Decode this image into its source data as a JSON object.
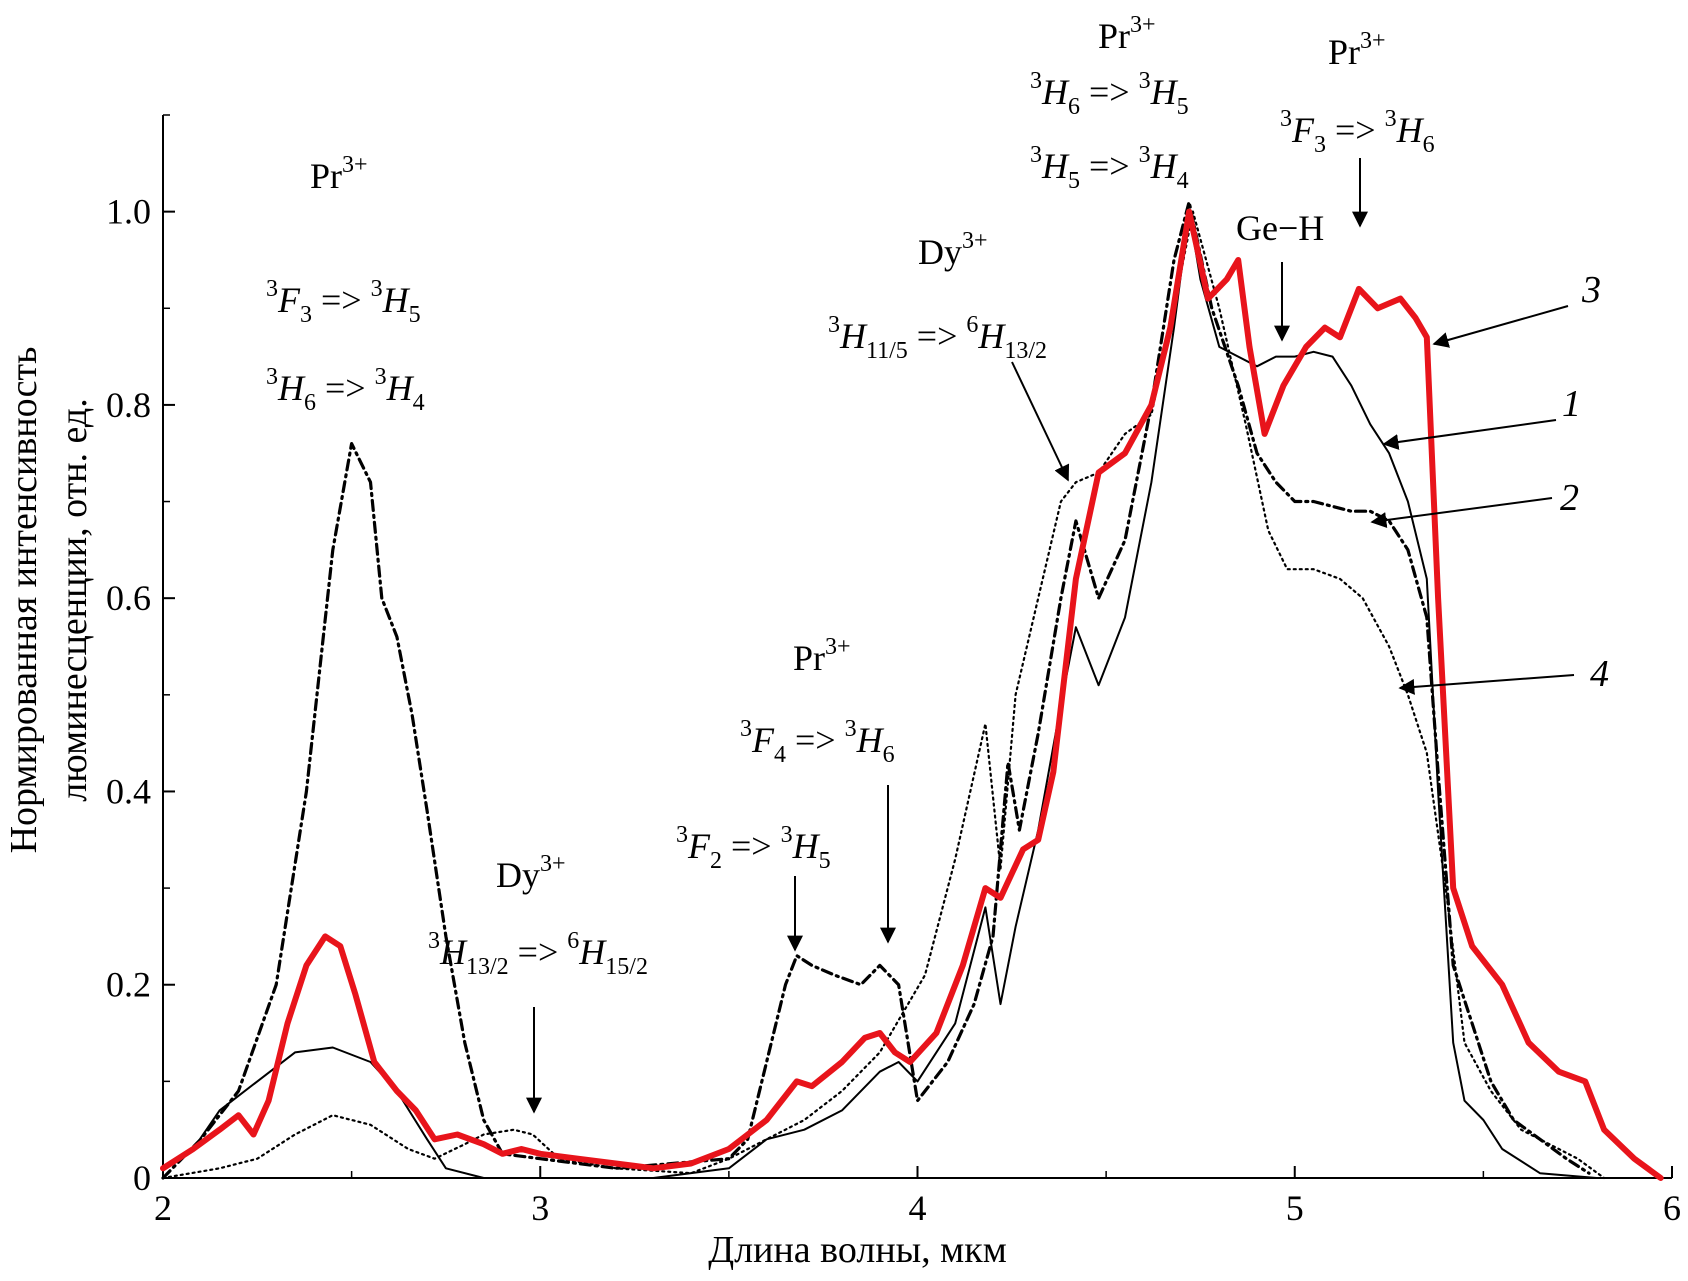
{
  "chart_data": {
    "type": "line",
    "xlabel": "Длина волны, мкм",
    "ylabel": "Нормированная интенсивность люминесценции, отн. ед.",
    "ylabel_lines": [
      "Нормированная интенсивность",
      "люминесценции, отн. ед."
    ],
    "xlim": [
      2,
      6
    ],
    "ylim": [
      0,
      1.1
    ],
    "xticks": [
      2,
      3,
      4,
      5,
      6
    ],
    "yticks": [
      0,
      0.2,
      0.4,
      0.6,
      0.8,
      1.0
    ],
    "ytick_labels": [
      "0",
      "0.2",
      "0.4",
      "0.6",
      "0.8",
      "1.0"
    ],
    "grid": false,
    "series": [
      {
        "name": "1",
        "style": "solid-thin",
        "color": "#000000",
        "points": [
          [
            2.0,
            0.01
          ],
          [
            2.08,
            0.03
          ],
          [
            2.15,
            0.07
          ],
          [
            2.25,
            0.1
          ],
          [
            2.35,
            0.13
          ],
          [
            2.45,
            0.135
          ],
          [
            2.55,
            0.12
          ],
          [
            2.62,
            0.09
          ],
          [
            2.7,
            0.04
          ],
          [
            2.75,
            0.01
          ],
          [
            2.85,
            0.0
          ],
          [
            3.0,
            0.0
          ],
          [
            3.3,
            0.0
          ],
          [
            3.5,
            0.01
          ],
          [
            3.6,
            0.04
          ],
          [
            3.7,
            0.05
          ],
          [
            3.8,
            0.07
          ],
          [
            3.9,
            0.11
          ],
          [
            3.95,
            0.12
          ],
          [
            4.0,
            0.1
          ],
          [
            4.1,
            0.16
          ],
          [
            4.18,
            0.28
          ],
          [
            4.22,
            0.18
          ],
          [
            4.26,
            0.26
          ],
          [
            4.32,
            0.36
          ],
          [
            4.38,
            0.49
          ],
          [
            4.42,
            0.57
          ],
          [
            4.48,
            0.51
          ],
          [
            4.55,
            0.58
          ],
          [
            4.62,
            0.72
          ],
          [
            4.68,
            0.88
          ],
          [
            4.72,
            1.0
          ],
          [
            4.75,
            0.93
          ],
          [
            4.8,
            0.86
          ],
          [
            4.85,
            0.85
          ],
          [
            4.9,
            0.84
          ],
          [
            4.95,
            0.85
          ],
          [
            5.0,
            0.85
          ],
          [
            5.05,
            0.855
          ],
          [
            5.1,
            0.85
          ],
          [
            5.15,
            0.82
          ],
          [
            5.2,
            0.78
          ],
          [
            5.25,
            0.75
          ],
          [
            5.3,
            0.7
          ],
          [
            5.35,
            0.62
          ],
          [
            5.38,
            0.4
          ],
          [
            5.42,
            0.14
          ],
          [
            5.45,
            0.08
          ],
          [
            5.5,
            0.06
          ],
          [
            5.55,
            0.03
          ],
          [
            5.65,
            0.005
          ],
          [
            5.8,
            0.0
          ]
        ]
      },
      {
        "name": "2",
        "style": "dash-dot",
        "color": "#000000",
        "points": [
          [
            2.0,
            0.0
          ],
          [
            2.1,
            0.04
          ],
          [
            2.2,
            0.09
          ],
          [
            2.3,
            0.2
          ],
          [
            2.38,
            0.4
          ],
          [
            2.45,
            0.65
          ],
          [
            2.5,
            0.76
          ],
          [
            2.55,
            0.72
          ],
          [
            2.58,
            0.6
          ],
          [
            2.62,
            0.56
          ],
          [
            2.66,
            0.48
          ],
          [
            2.7,
            0.38
          ],
          [
            2.75,
            0.25
          ],
          [
            2.8,
            0.14
          ],
          [
            2.85,
            0.06
          ],
          [
            2.9,
            0.025
          ],
          [
            3.0,
            0.02
          ],
          [
            3.2,
            0.01
          ],
          [
            3.5,
            0.02
          ],
          [
            3.55,
            0.04
          ],
          [
            3.6,
            0.12
          ],
          [
            3.65,
            0.2
          ],
          [
            3.68,
            0.23
          ],
          [
            3.72,
            0.22
          ],
          [
            3.78,
            0.21
          ],
          [
            3.85,
            0.2
          ],
          [
            3.9,
            0.22
          ],
          [
            3.95,
            0.2
          ],
          [
            4.0,
            0.08
          ],
          [
            4.08,
            0.12
          ],
          [
            4.15,
            0.18
          ],
          [
            4.2,
            0.25
          ],
          [
            4.24,
            0.43
          ],
          [
            4.27,
            0.36
          ],
          [
            4.32,
            0.46
          ],
          [
            4.38,
            0.6
          ],
          [
            4.42,
            0.68
          ],
          [
            4.48,
            0.6
          ],
          [
            4.55,
            0.66
          ],
          [
            4.62,
            0.8
          ],
          [
            4.68,
            0.95
          ],
          [
            4.72,
            1.01
          ],
          [
            4.78,
            0.9
          ],
          [
            4.85,
            0.82
          ],
          [
            4.9,
            0.75
          ],
          [
            4.95,
            0.72
          ],
          [
            5.0,
            0.7
          ],
          [
            5.05,
            0.7
          ],
          [
            5.1,
            0.695
          ],
          [
            5.15,
            0.69
          ],
          [
            5.2,
            0.69
          ],
          [
            5.25,
            0.68
          ],
          [
            5.3,
            0.65
          ],
          [
            5.35,
            0.58
          ],
          [
            5.38,
            0.42
          ],
          [
            5.42,
            0.22
          ],
          [
            5.47,
            0.16
          ],
          [
            5.52,
            0.1
          ],
          [
            5.58,
            0.06
          ],
          [
            5.65,
            0.04
          ],
          [
            5.72,
            0.02
          ],
          [
            5.78,
            0.005
          ]
        ]
      },
      {
        "name": "3",
        "style": "solid-thick",
        "color": "#e8141b",
        "points": [
          [
            2.0,
            0.01
          ],
          [
            2.08,
            0.03
          ],
          [
            2.15,
            0.05
          ],
          [
            2.2,
            0.065
          ],
          [
            2.24,
            0.045
          ],
          [
            2.28,
            0.08
          ],
          [
            2.33,
            0.16
          ],
          [
            2.38,
            0.22
          ],
          [
            2.43,
            0.25
          ],
          [
            2.47,
            0.24
          ],
          [
            2.51,
            0.19
          ],
          [
            2.56,
            0.12
          ],
          [
            2.62,
            0.09
          ],
          [
            2.67,
            0.07
          ],
          [
            2.72,
            0.04
          ],
          [
            2.78,
            0.045
          ],
          [
            2.85,
            0.035
          ],
          [
            2.9,
            0.025
          ],
          [
            2.95,
            0.03
          ],
          [
            3.0,
            0.025
          ],
          [
            3.1,
            0.02
          ],
          [
            3.2,
            0.015
          ],
          [
            3.3,
            0.01
          ],
          [
            3.4,
            0.015
          ],
          [
            3.5,
            0.03
          ],
          [
            3.6,
            0.06
          ],
          [
            3.68,
            0.1
          ],
          [
            3.72,
            0.095
          ],
          [
            3.8,
            0.12
          ],
          [
            3.86,
            0.145
          ],
          [
            3.9,
            0.15
          ],
          [
            3.94,
            0.13
          ],
          [
            3.98,
            0.12
          ],
          [
            4.05,
            0.15
          ],
          [
            4.12,
            0.22
          ],
          [
            4.18,
            0.3
          ],
          [
            4.22,
            0.29
          ],
          [
            4.28,
            0.34
          ],
          [
            4.32,
            0.35
          ],
          [
            4.36,
            0.42
          ],
          [
            4.42,
            0.62
          ],
          [
            4.48,
            0.73
          ],
          [
            4.55,
            0.75
          ],
          [
            4.62,
            0.8
          ],
          [
            4.67,
            0.88
          ],
          [
            4.72,
            1.0
          ],
          [
            4.77,
            0.91
          ],
          [
            4.82,
            0.93
          ],
          [
            4.85,
            0.95
          ],
          [
            4.88,
            0.86
          ],
          [
            4.92,
            0.77
          ],
          [
            4.97,
            0.82
          ],
          [
            5.03,
            0.86
          ],
          [
            5.08,
            0.88
          ],
          [
            5.12,
            0.87
          ],
          [
            5.17,
            0.92
          ],
          [
            5.22,
            0.9
          ],
          [
            5.28,
            0.91
          ],
          [
            5.32,
            0.89
          ],
          [
            5.35,
            0.87
          ],
          [
            5.38,
            0.6
          ],
          [
            5.42,
            0.3
          ],
          [
            5.47,
            0.24
          ],
          [
            5.55,
            0.2
          ],
          [
            5.62,
            0.14
          ],
          [
            5.7,
            0.11
          ],
          [
            5.77,
            0.1
          ],
          [
            5.82,
            0.05
          ],
          [
            5.9,
            0.02
          ],
          [
            5.97,
            0.0
          ]
        ]
      },
      {
        "name": "4",
        "style": "dotted",
        "color": "#000000",
        "points": [
          [
            2.0,
            0.0
          ],
          [
            2.15,
            0.01
          ],
          [
            2.25,
            0.02
          ],
          [
            2.35,
            0.045
          ],
          [
            2.45,
            0.065
          ],
          [
            2.55,
            0.055
          ],
          [
            2.65,
            0.03
          ],
          [
            2.72,
            0.02
          ],
          [
            2.8,
            0.035
          ],
          [
            2.85,
            0.045
          ],
          [
            2.93,
            0.05
          ],
          [
            2.98,
            0.045
          ],
          [
            3.05,
            0.02
          ],
          [
            3.2,
            0.01
          ],
          [
            3.4,
            0.005
          ],
          [
            3.5,
            0.02
          ],
          [
            3.6,
            0.04
          ],
          [
            3.7,
            0.06
          ],
          [
            3.8,
            0.09
          ],
          [
            3.9,
            0.13
          ],
          [
            3.96,
            0.17
          ],
          [
            4.02,
            0.21
          ],
          [
            4.1,
            0.33
          ],
          [
            4.18,
            0.47
          ],
          [
            4.22,
            0.32
          ],
          [
            4.26,
            0.5
          ],
          [
            4.32,
            0.6
          ],
          [
            4.38,
            0.7
          ],
          [
            4.42,
            0.72
          ],
          [
            4.48,
            0.73
          ],
          [
            4.55,
            0.77
          ],
          [
            4.62,
            0.79
          ],
          [
            4.68,
            0.9
          ],
          [
            4.73,
            1.0
          ],
          [
            4.8,
            0.9
          ],
          [
            4.87,
            0.78
          ],
          [
            4.93,
            0.67
          ],
          [
            4.98,
            0.63
          ],
          [
            5.05,
            0.63
          ],
          [
            5.12,
            0.62
          ],
          [
            5.18,
            0.6
          ],
          [
            5.25,
            0.55
          ],
          [
            5.3,
            0.5
          ],
          [
            5.35,
            0.44
          ],
          [
            5.4,
            0.3
          ],
          [
            5.45,
            0.14
          ],
          [
            5.52,
            0.09
          ],
          [
            5.6,
            0.05
          ],
          [
            5.7,
            0.03
          ],
          [
            5.75,
            0.02
          ],
          [
            5.82,
            0.0
          ]
        ]
      }
    ],
    "curve_labels": [
      "1",
      "2",
      "3",
      "4"
    ],
    "annotations": {
      "a1": {
        "ion": "Pr",
        "ion_sup": "3+",
        "t1": {
          "l": "3",
          "L": "F",
          "ls": "3",
          "r": "3",
          "R": "H",
          "rs": "5"
        },
        "t2": {
          "l": "3",
          "L": "H",
          "ls": "6",
          "r": "3",
          "R": "H",
          "rs": "4"
        }
      },
      "a2": {
        "ion": "Dy",
        "ion_sup": "3+",
        "t1": {
          "l": "3",
          "L": "H",
          "ls": "13/2",
          "r": "6",
          "R": "H",
          "rs": "15/2"
        }
      },
      "a3": {
        "ion": "Pr",
        "ion_sup": "3+",
        "t1": {
          "l": "3",
          "L": "F",
          "ls": "4",
          "r": "3",
          "R": "H",
          "rs": "6"
        },
        "t2": {
          "l": "3",
          "L": "F",
          "ls": "2",
          "r": "3",
          "R": "H",
          "rs": "5"
        }
      },
      "a4": {
        "ion": "Dy",
        "ion_sup": "3+",
        "t1": {
          "l": "3",
          "L": "H",
          "ls": "11/5",
          "r": "6",
          "R": "H",
          "rs": "13/2"
        }
      },
      "a5": {
        "ion": "Pr",
        "ion_sup": "3+",
        "t1": {
          "l": "3",
          "L": "H",
          "ls": "6",
          "r": "3",
          "R": "H",
          "rs": "5"
        },
        "t2": {
          "l": "3",
          "L": "H",
          "ls": "5",
          "r": "3",
          "R": "H",
          "rs": "4"
        }
      },
      "a6": {
        "ion": "Pr",
        "ion_sup": "3+",
        "t1": {
          "l": "3",
          "L": "F",
          "ls": "3",
          "r": "3",
          "R": "H",
          "rs": "6"
        }
      },
      "geh": "Ge−H",
      "arrow_sym": "=>"
    }
  }
}
